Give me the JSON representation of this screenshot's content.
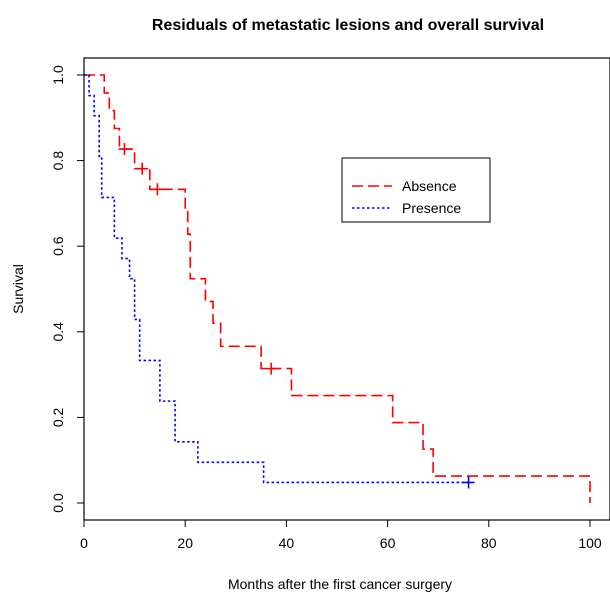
{
  "chart_data": {
    "type": "line",
    "step": true,
    "title": "Residuals of metastatic lesions and overall survival",
    "xlabel": "Months after the first cancer surgery",
    "ylabel": "Survival",
    "xlim": [
      0,
      100
    ],
    "ylim": [
      0,
      1
    ],
    "xticks": [
      "0",
      "20",
      "40",
      "60",
      "80",
      "100"
    ],
    "yticks": [
      "0.0",
      "0.2",
      "0.4",
      "0.6",
      "0.8",
      "1.0"
    ],
    "grid": false,
    "legend_position": "upper-right",
    "series": [
      {
        "name": "Absence",
        "color": "#ff0000",
        "linestyle": "dashed",
        "steps": [
          [
            0,
            1.0
          ],
          [
            4,
            0.958
          ],
          [
            5,
            0.917
          ],
          [
            6,
            0.875
          ],
          [
            7,
            0.827
          ],
          [
            10,
            0.781
          ],
          [
            13,
            0.733
          ],
          [
            20,
            0.681
          ],
          [
            20.5,
            0.628
          ],
          [
            21,
            0.524
          ],
          [
            24,
            0.471
          ],
          [
            25.5,
            0.42
          ],
          [
            27,
            0.366
          ],
          [
            35,
            0.314
          ],
          [
            41,
            0.251
          ],
          [
            61,
            0.188
          ],
          [
            67,
            0.126
          ],
          [
            69,
            0.063
          ],
          [
            100,
            0.0
          ]
        ],
        "censored": [
          [
            8,
            0.827
          ],
          [
            11.5,
            0.781
          ],
          [
            14.5,
            0.733
          ],
          [
            37,
            0.314
          ]
        ]
      },
      {
        "name": "Presence",
        "color": "#0000ff",
        "linestyle": "dotted",
        "steps": [
          [
            0,
            1.0
          ],
          [
            1,
            0.952
          ],
          [
            2,
            0.905
          ],
          [
            3,
            0.81
          ],
          [
            3.5,
            0.714
          ],
          [
            6,
            0.619
          ],
          [
            7.5,
            0.571
          ],
          [
            9,
            0.524
          ],
          [
            10,
            0.429
          ],
          [
            11,
            0.333
          ],
          [
            15,
            0.238
          ],
          [
            18,
            0.143
          ],
          [
            22.5,
            0.095
          ],
          [
            35.5,
            0.048
          ]
        ],
        "end_x": 76,
        "censored": [
          [
            76,
            0.048
          ]
        ]
      }
    ]
  }
}
